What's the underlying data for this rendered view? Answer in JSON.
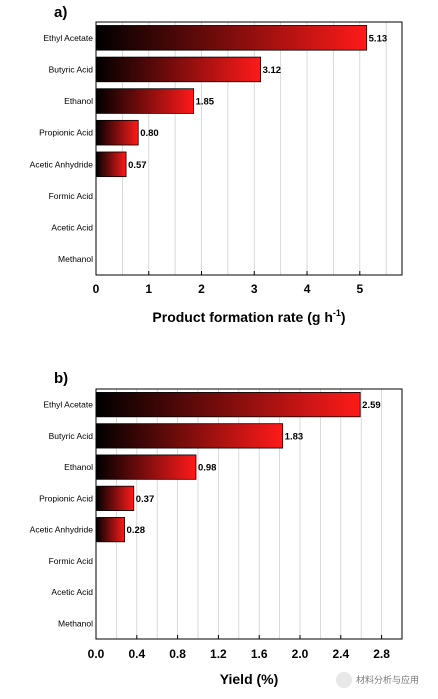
{
  "chart_data": [
    {
      "type": "bar",
      "orientation": "horizontal",
      "panel_label": "a)",
      "categories": [
        "Ethyl Acetate",
        "Butyric Acid",
        "Ethanol",
        "Propionic Acid",
        "Acetic Anhydride",
        "Formic Acid",
        "Acetic Acid",
        "Methanol"
      ],
      "values": [
        5.13,
        3.12,
        1.85,
        0.8,
        0.57,
        0,
        0,
        0
      ],
      "value_labels": [
        "5.13",
        "3.12",
        "1.85",
        "0.80",
        "0.57",
        "",
        "",
        ""
      ],
      "xlabel": "Product formation rate (g h",
      "xlabel_sup": "-1",
      "xlabel_end": ")",
      "xlim": [
        0,
        5.8
      ],
      "xticks": [
        0,
        1,
        2,
        3,
        4,
        5
      ],
      "xtick_labels": [
        "0",
        "1",
        "2",
        "3",
        "4",
        "5"
      ],
      "minor_step": 0.5,
      "grid": true,
      "colors": {
        "bar_start": "#000000",
        "bar_end": "#ff1a1a"
      }
    },
    {
      "type": "bar",
      "orientation": "horizontal",
      "panel_label": "b)",
      "categories": [
        "Ethyl Acetate",
        "Butyric Acid",
        "Ethanol",
        "Propionic Acid",
        "Acetic Anhydride",
        "Formic Acid",
        "Acetic Acid",
        "Methanol"
      ],
      "values": [
        2.59,
        1.83,
        0.98,
        0.37,
        0.28,
        0,
        0,
        0
      ],
      "value_labels": [
        "2.59",
        "1.83",
        "0.98",
        "0.37",
        "0.28",
        "",
        "",
        ""
      ],
      "xlabel": "Yield (%)",
      "xlim": [
        0,
        3.0
      ],
      "xticks": [
        0,
        0.4,
        0.8,
        1.2,
        1.6,
        2.0,
        2.4,
        2.8
      ],
      "xtick_labels": [
        "0.0",
        "0.4",
        "0.8",
        "1.2",
        "1.6",
        "2.0",
        "2.4",
        "2.8"
      ],
      "minor_step": 0.2,
      "grid": true,
      "colors": {
        "bar_start": "#000000",
        "bar_end": "#ff1a1a"
      }
    }
  ],
  "watermark": {
    "text": "材料分析与应用",
    "icon": "wechat-icon"
  }
}
